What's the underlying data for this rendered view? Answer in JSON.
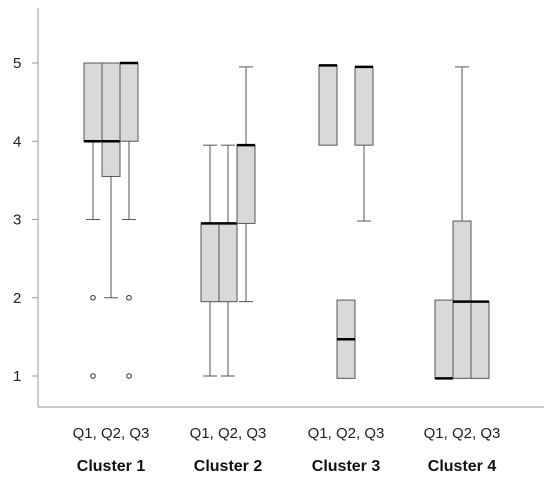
{
  "chart_data": {
    "type": "boxplot",
    "title": "",
    "xlabel": "",
    "ylabel": "",
    "ylim": [
      0.6,
      5.7
    ],
    "yticks": [
      1,
      2,
      3,
      4,
      5
    ],
    "grid": false,
    "legend": "none",
    "box_fill": "#d9d9d9",
    "stroke": "#555555",
    "clusters": [
      {
        "label": "Cluster 1",
        "sublabel": "Q1, Q2, Q3",
        "boxes": [
          {
            "min": 3.0,
            "q1": 4.0,
            "median": 4.0,
            "q3": 5.0,
            "max": 5.0,
            "outliers": [
              2.0,
              1.0
            ]
          },
          {
            "min": 2.0,
            "q1": 3.55,
            "median": 4.0,
            "q3": 5.0,
            "max": 5.0,
            "outliers": []
          },
          {
            "min": 3.0,
            "q1": 4.0,
            "median": 5.0,
            "q3": 5.0,
            "max": 5.0,
            "outliers": [
              2.0,
              1.0
            ]
          }
        ]
      },
      {
        "label": "Cluster 2",
        "sublabel": "Q1, Q2, Q3",
        "boxes": [
          {
            "min": 1.0,
            "q1": 1.95,
            "median": 2.95,
            "q3": 2.95,
            "max": 3.95,
            "outliers": []
          },
          {
            "min": 1.0,
            "q1": 1.95,
            "median": 2.95,
            "q3": 2.95,
            "max": 3.95,
            "outliers": []
          },
          {
            "min": 1.95,
            "q1": 2.95,
            "median": 3.95,
            "q3": 3.95,
            "max": 4.95,
            "outliers": []
          }
        ]
      },
      {
        "label": "Cluster 3",
        "sublabel": "Q1, Q2, Q3",
        "boxes": [
          {
            "min": 3.95,
            "q1": 3.95,
            "median": 4.97,
            "q3": 4.97,
            "max": 4.97,
            "outliers": []
          },
          {
            "min": 0.97,
            "q1": 0.97,
            "median": 1.47,
            "q3": 1.97,
            "max": 1.97,
            "outliers": []
          },
          {
            "min": 2.98,
            "q1": 3.95,
            "median": 4.95,
            "q3": 4.95,
            "max": 4.95,
            "outliers": []
          }
        ]
      },
      {
        "label": "Cluster 4",
        "sublabel": "Q1, Q2, Q3",
        "boxes": [
          {
            "min": 0.97,
            "q1": 0.97,
            "median": 0.97,
            "q3": 1.97,
            "max": 1.97,
            "outliers": []
          },
          {
            "min": 0.97,
            "q1": 0.97,
            "median": 1.95,
            "q3": 2.98,
            "max": 4.95,
            "outliers": []
          },
          {
            "min": 0.97,
            "q1": 0.97,
            "median": 1.95,
            "q3": 1.95,
            "max": 1.95,
            "outliers": []
          }
        ]
      }
    ]
  }
}
